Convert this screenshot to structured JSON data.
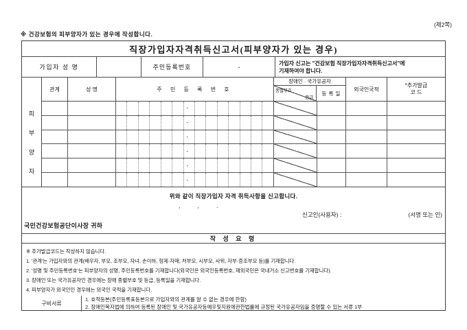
{
  "page": {
    "page_marker": "(제2쪽)",
    "top_note": "※ 건강보험의 피부양자가 있는 경우에 작성합니다.",
    "title": "직장가입자자격취득신고서(피부양자가 있는 경우)"
  },
  "subscriber_row": {
    "name_label": "가입자 성  명",
    "name_value": "",
    "rrn_label": "주민등록번호",
    "rrn_value": "-",
    "notice_line1": "가입자 신고는 \"건강보험 직장가입자자격취득신고서\"에",
    "notice_line2": "기재하여야 합니다."
  },
  "dependents_table": {
    "stub_chars": [
      "피",
      "부",
      "양",
      "자"
    ],
    "headers": {
      "relation": "관계",
      "name": "성    명",
      "rrn": "주 민 등 록 번 호",
      "group": "장애인 · 국가유공자",
      "code": "종별부호",
      "grade": "등급",
      "reg_date": "등 록 일",
      "nationality": "외국인국적",
      "extra_line1": "*추가발급",
      "extra_line2": "코    드"
    },
    "rrn_box_count": 14,
    "rrn_dash_index": 6,
    "rrn_dash": "-",
    "row_count": 6,
    "rows": [
      {
        "relation": "",
        "name": "",
        "reg_date": "",
        "nationality": "",
        "extra_code": ""
      },
      {
        "relation": "",
        "name": "",
        "reg_date": "",
        "nationality": "",
        "extra_code": ""
      },
      {
        "relation": "",
        "name": "",
        "reg_date": "",
        "nationality": "",
        "extra_code": ""
      },
      {
        "relation": "",
        "name": "",
        "reg_date": "",
        "nationality": "",
        "extra_code": ""
      },
      {
        "relation": "",
        "name": "",
        "reg_date": "",
        "nationality": "",
        "extra_code": ""
      },
      {
        "relation": "",
        "name": "",
        "reg_date": "",
        "nationality": "",
        "extra_code": ""
      }
    ]
  },
  "declaration": {
    "statement": "위와 같이 직장가입자 자격 취득사항을 신고합니다.",
    "date_line": ",          ,          .",
    "reporter_label": "신고인(사용자) :",
    "sign_label": "(서명 또는 인)",
    "recipient": "국민건강보험공단이사장 귀하"
  },
  "guide": {
    "title": "작 성 요 령",
    "lines": [
      "※ 추가발급코드는 작성하지 않습니다.",
      "1. '관계'는 가입자와의 관계(배우자, 부모, 조부모, 자녀, 손이하, 형제·자매, 처부모, 시부모, 사위, 자부·증조부모 등)를 기재합니다.",
      "2. '성명 및 주민등록번호'는 피부양자의 성명, 주민등록번호를 기재합니다(외국인은 외국인등록번호, 재외국민은 국내거소 신고번호를 기재합니다).",
      "3. 장애인 또는 국가유공자인 경우에는 장애 종별부호 및 등급, 등록일을 기재합니다.",
      "4. 피부양자가 외국인인 경우에는 외국인 국적을 기재합니다."
    ]
  },
  "attachments": {
    "label": "구비서류",
    "items": [
      "1. 호적등본(주민등록표등본으로 가입자와의 관계를 알 수 없는 경우에 한함)",
      "2. 장애인복지법에 의하여 등록된 장애인 및 국가유공자등예우및지원에관한법률에 규정된 국가유공자임을 증명할 수 있는 서류 1부"
    ]
  }
}
